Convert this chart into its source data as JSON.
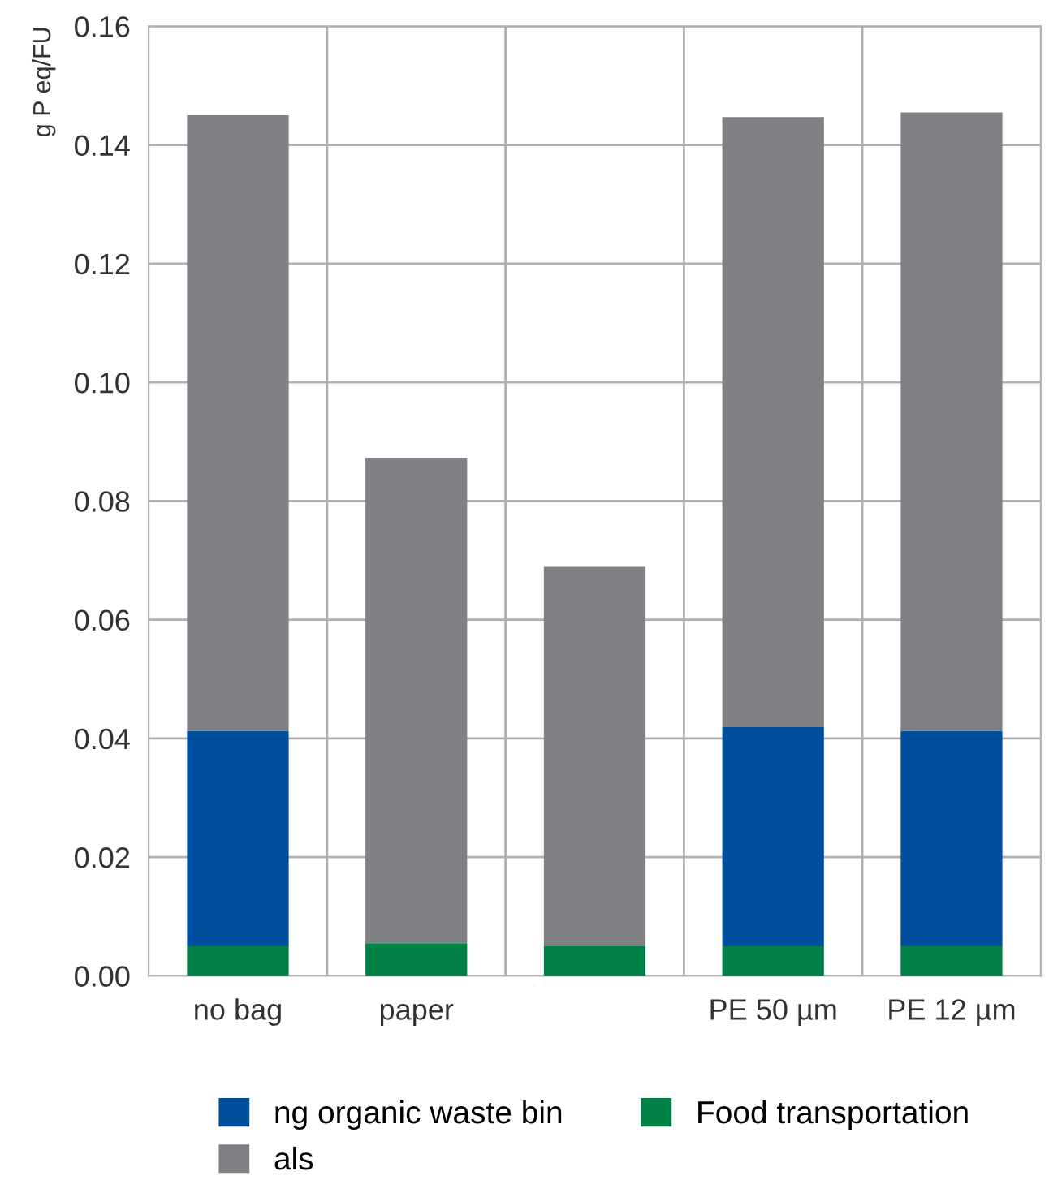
{
  "chart_data": {
    "type": "bar",
    "stacked": true,
    "ylabel": "g P eq/FU",
    "categories": [
      "no bag",
      "paper",
      null,
      "PE 50 µm",
      "PE 12 µm"
    ],
    "series": [
      {
        "name": "Food transportation",
        "color": "#008146",
        "values": [
          0.005,
          0.0055,
          0.005,
          0.005,
          0.005
        ]
      },
      {
        "name": "ng organic waste bin",
        "color": "#004f9f",
        "values": [
          0.0363,
          0,
          0,
          0.0369,
          0.0363
        ]
      },
      {
        "name": "als",
        "color": "#808185",
        "values": [
          0.1037,
          0.0818,
          0.0639,
          0.1028,
          0.1042
        ]
      }
    ],
    "ylim": [
      0,
      0.16
    ],
    "yticks": [
      {
        "value": 0,
        "label": "0.00"
      },
      {
        "value": 0.02,
        "label": "0.02"
      },
      {
        "value": 0.04,
        "label": "0.04"
      },
      {
        "value": 0.06,
        "label": "0.06"
      },
      {
        "value": 0.08,
        "label": "0.08"
      },
      {
        "value": 0.1,
        "label": "0.10"
      },
      {
        "value": 0.12,
        "label": "0.12"
      },
      {
        "value": 0.14,
        "label": "0.14"
      },
      {
        "value": 0.16,
        "label": "0.16"
      }
    ],
    "grid": true,
    "legend": "bottom"
  }
}
